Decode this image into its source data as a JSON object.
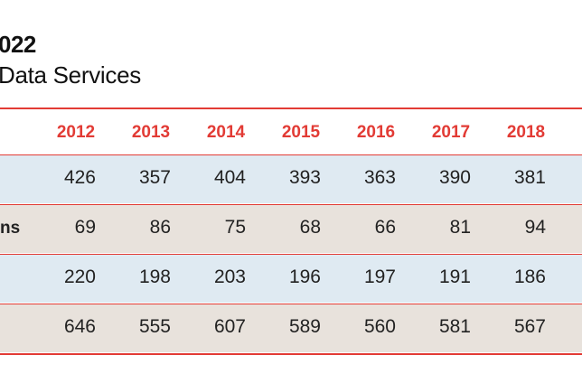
{
  "header": {
    "title": "022",
    "subtitle": "Data Services"
  },
  "table": {
    "columns": [
      "2012",
      "2013",
      "2014",
      "2015",
      "2016",
      "2017",
      "2018"
    ],
    "rows": [
      {
        "values": [
          426,
          357,
          404,
          393,
          363,
          390,
          381
        ]
      },
      {
        "label": "ns",
        "values": [
          69,
          86,
          75,
          68,
          66,
          81,
          94
        ]
      },
      {
        "values": [
          220,
          198,
          203,
          196,
          197,
          191,
          186
        ]
      },
      {
        "values": [
          646,
          555,
          607,
          589,
          560,
          581,
          567
        ]
      }
    ]
  }
}
